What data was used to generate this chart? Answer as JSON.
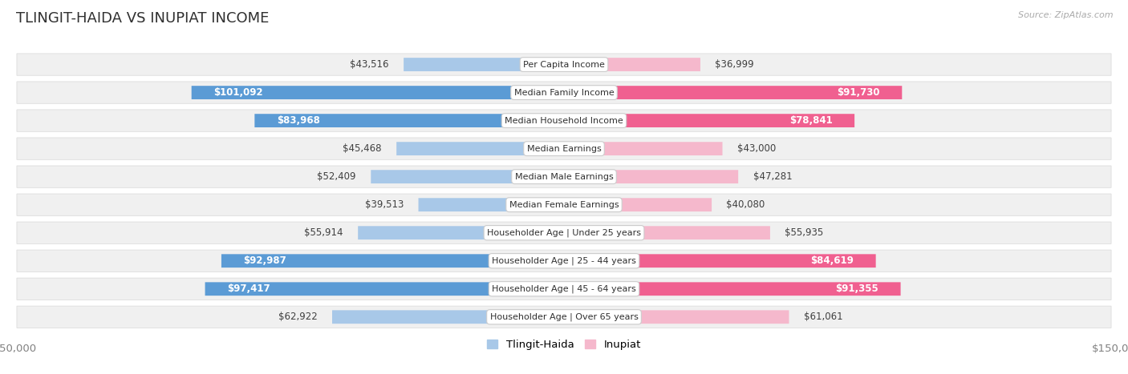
{
  "title": "TLINGIT-HAIDA VS INUPIAT INCOME",
  "source": "Source: ZipAtlas.com",
  "categories": [
    "Per Capita Income",
    "Median Family Income",
    "Median Household Income",
    "Median Earnings",
    "Median Male Earnings",
    "Median Female Earnings",
    "Householder Age | Under 25 years",
    "Householder Age | 25 - 44 years",
    "Householder Age | 45 - 64 years",
    "Householder Age | Over 65 years"
  ],
  "tlingit_values": [
    43516,
    101092,
    83968,
    45468,
    52409,
    39513,
    55914,
    92987,
    97417,
    62922
  ],
  "inupiat_values": [
    36999,
    91730,
    78841,
    43000,
    47281,
    40080,
    55935,
    84619,
    91355,
    61061
  ],
  "tlingit_labels": [
    "$43,516",
    "$101,092",
    "$83,968",
    "$45,468",
    "$52,409",
    "$39,513",
    "$55,914",
    "$92,987",
    "$97,417",
    "$62,922"
  ],
  "inupiat_labels": [
    "$36,999",
    "$91,730",
    "$78,841",
    "$43,000",
    "$47,281",
    "$40,080",
    "$55,935",
    "$84,619",
    "$91,355",
    "$61,061"
  ],
  "tlingit_color_light": "#a8c8e8",
  "tlingit_color_dark": "#5b9bd5",
  "inupiat_color_light": "#f5b8cc",
  "inupiat_color_dark": "#f06090",
  "max_value": 150000,
  "bg_color": "#ffffff",
  "row_bg": "#f0f0f0",
  "title_color": "#303030",
  "value_color_outside": "#404040",
  "value_color_inside": "#ffffff",
  "axis_label_color": "#808080",
  "legend_tlingit": "Tlingit-Haida",
  "legend_inupiat": "Inupiat",
  "inside_threshold": 70000
}
